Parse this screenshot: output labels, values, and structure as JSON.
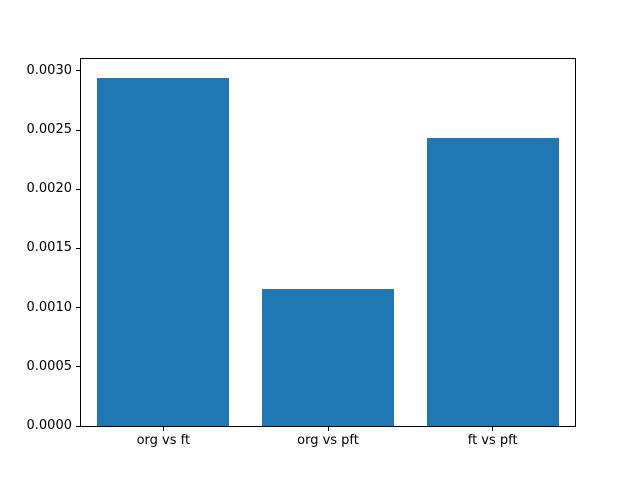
{
  "chart_data": {
    "type": "bar",
    "title": "",
    "xlabel": "",
    "ylabel": "",
    "categories": [
      "org vs ft",
      "org vs pft",
      "ft vs pft"
    ],
    "values": [
      0.00294,
      0.00116,
      0.00243
    ],
    "ylim": [
      0,
      0.0031
    ],
    "yticks": [
      "0.0000",
      "0.0005",
      "0.0010",
      "0.0015",
      "0.0020",
      "0.0025",
      "0.0030"
    ],
    "bar_color": "#1f77b4",
    "background": "#ffffff",
    "grid": false,
    "legend_position": "none"
  }
}
